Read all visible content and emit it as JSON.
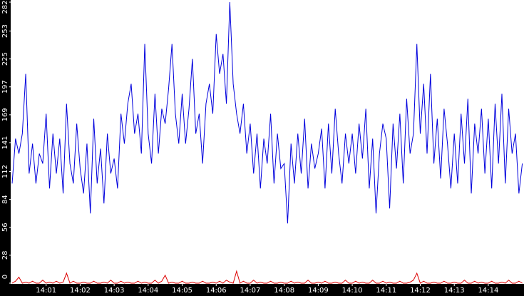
{
  "chart_data": {
    "type": "line",
    "x": [
      0,
      0.1,
      0.2,
      0.3,
      0.4,
      0.5,
      0.6,
      0.7,
      0.8,
      0.9,
      1,
      1.1,
      1.2,
      1.3,
      1.4,
      1.5,
      1.6,
      1.7,
      1.8,
      1.9,
      2,
      2.1,
      2.2,
      2.3,
      2.4,
      2.5,
      2.6,
      2.7,
      2.8,
      2.9,
      3,
      3.1,
      3.2,
      3.3,
      3.4,
      3.5,
      3.6,
      3.7,
      3.8,
      3.9,
      4,
      4.1,
      4.2,
      4.3,
      4.4,
      4.5,
      4.6,
      4.7,
      4.8,
      4.9,
      5,
      5.1,
      5.2,
      5.3,
      5.4,
      5.5,
      5.6,
      5.7,
      5.8,
      5.9,
      6,
      6.1,
      6.2,
      6.3,
      6.4,
      6.5,
      6.6,
      6.7,
      6.8,
      6.9,
      7,
      7.1,
      7.2,
      7.3,
      7.4,
      7.5,
      7.6,
      7.7,
      7.8,
      7.9,
      8,
      8.1,
      8.2,
      8.3,
      8.4,
      8.5,
      8.6,
      8.7,
      8.8,
      8.9,
      9,
      9.1,
      9.2,
      9.3,
      9.4,
      9.5,
      9.6,
      9.7,
      9.8,
      9.9,
      10,
      10.1,
      10.2,
      10.3,
      10.4,
      10.5,
      10.6,
      10.7,
      10.8,
      10.9,
      11,
      11.1,
      11.2,
      11.3,
      11.4,
      11.5,
      11.6,
      11.7,
      11.8,
      11.9,
      12,
      12.1,
      12.2,
      12.3,
      12.4,
      12.5,
      12.6,
      12.7,
      12.8,
      12.9,
      13,
      13.1,
      13.2,
      13.3,
      13.4,
      13.5,
      13.6,
      13.7,
      13.8,
      13.9,
      14,
      14.1,
      14.2,
      14.3,
      14.4,
      14.5,
      14.6,
      14.7,
      14.8,
      14.9,
      15
    ],
    "series": [
      {
        "color": "#0000dd",
        "values": [
          100,
          145,
          130,
          150,
          210,
          110,
          140,
          100,
          130,
          120,
          170,
          95,
          150,
          110,
          145,
          90,
          180,
          120,
          100,
          160,
          115,
          90,
          140,
          70,
          165,
          100,
          135,
          80,
          150,
          110,
          125,
          95,
          170,
          140,
          180,
          200,
          150,
          170,
          130,
          240,
          150,
          120,
          190,
          130,
          175,
          160,
          195,
          240,
          170,
          140,
          190,
          140,
          175,
          225,
          150,
          170,
          120,
          180,
          200,
          170,
          250,
          210,
          230,
          180,
          282,
          200,
          170,
          150,
          180,
          130,
          160,
          110,
          150,
          95,
          145,
          120,
          170,
          100,
          150,
          115,
          120,
          60,
          140,
          100,
          150,
          110,
          165,
          95,
          140,
          115,
          130,
          155,
          95,
          160,
          110,
          175,
          130,
          100,
          150,
          120,
          150,
          110,
          160,
          125,
          175,
          95,
          145,
          70,
          130,
          160,
          145,
          75,
          160,
          115,
          170,
          100,
          185,
          130,
          150,
          240,
          150,
          200,
          130,
          210,
          120,
          165,
          105,
          175,
          140,
          95,
          150,
          100,
          170,
          120,
          185,
          90,
          160,
          130,
          175,
          110,
          165,
          95,
          180,
          120,
          190,
          100,
          175,
          130,
          150,
          90,
          120
        ]
      },
      {
        "color": "#dd0000",
        "values": [
          0,
          2,
          6,
          0,
          1,
          0,
          2,
          0,
          0,
          3,
          0,
          1,
          0,
          2,
          0,
          1,
          10,
          0,
          2,
          0,
          0,
          1,
          0,
          0,
          2,
          0,
          0,
          1,
          0,
          3,
          0,
          0,
          2,
          0,
          1,
          0,
          0,
          2,
          0,
          1,
          0,
          0,
          3,
          0,
          2,
          8,
          0,
          1,
          0,
          0,
          2,
          0,
          0,
          1,
          0,
          0,
          2,
          0,
          0,
          1,
          0,
          2,
          0,
          3,
          1,
          0,
          12,
          0,
          2,
          0,
          0,
          3,
          0,
          1,
          0,
          0,
          2,
          0,
          0,
          1,
          0,
          0,
          2,
          0,
          1,
          0,
          0,
          3,
          0,
          0,
          1,
          0,
          2,
          0,
          0,
          1,
          0,
          0,
          3,
          0,
          0,
          2,
          0,
          1,
          0,
          0,
          3,
          0,
          0,
          2,
          0,
          1,
          0,
          0,
          2,
          0,
          0,
          1,
          3,
          10,
          0,
          2,
          0,
          0,
          1,
          0,
          0,
          2,
          0,
          0,
          1,
          0,
          0,
          3,
          0,
          0,
          2,
          0,
          1,
          0,
          0,
          2,
          0,
          0,
          1,
          0,
          3,
          0,
          0,
          2,
          0
        ]
      }
    ],
    "xlim": [
      0,
      15.05
    ],
    "xticks": [
      {
        "value": 1,
        "label": "14:01"
      },
      {
        "value": 2,
        "label": "14:02"
      },
      {
        "value": 3,
        "label": "14:03"
      },
      {
        "value": 4,
        "label": "14:04"
      },
      {
        "value": 5,
        "label": "14:05"
      },
      {
        "value": 6,
        "label": "14:06"
      },
      {
        "value": 7,
        "label": "14:07"
      },
      {
        "value": 8,
        "label": "14:08"
      },
      {
        "value": 9,
        "label": "14:09"
      },
      {
        "value": 10,
        "label": "14:10"
      },
      {
        "value": 11,
        "label": "14:11"
      },
      {
        "value": 12,
        "label": "14:12"
      },
      {
        "value": 13,
        "label": "14:13"
      },
      {
        "value": 14,
        "label": "14:14"
      }
    ],
    "ylim": [
      0,
      282
    ],
    "yticks": [
      0,
      28,
      56,
      84,
      112,
      141,
      169,
      197,
      225,
      253,
      282
    ]
  }
}
